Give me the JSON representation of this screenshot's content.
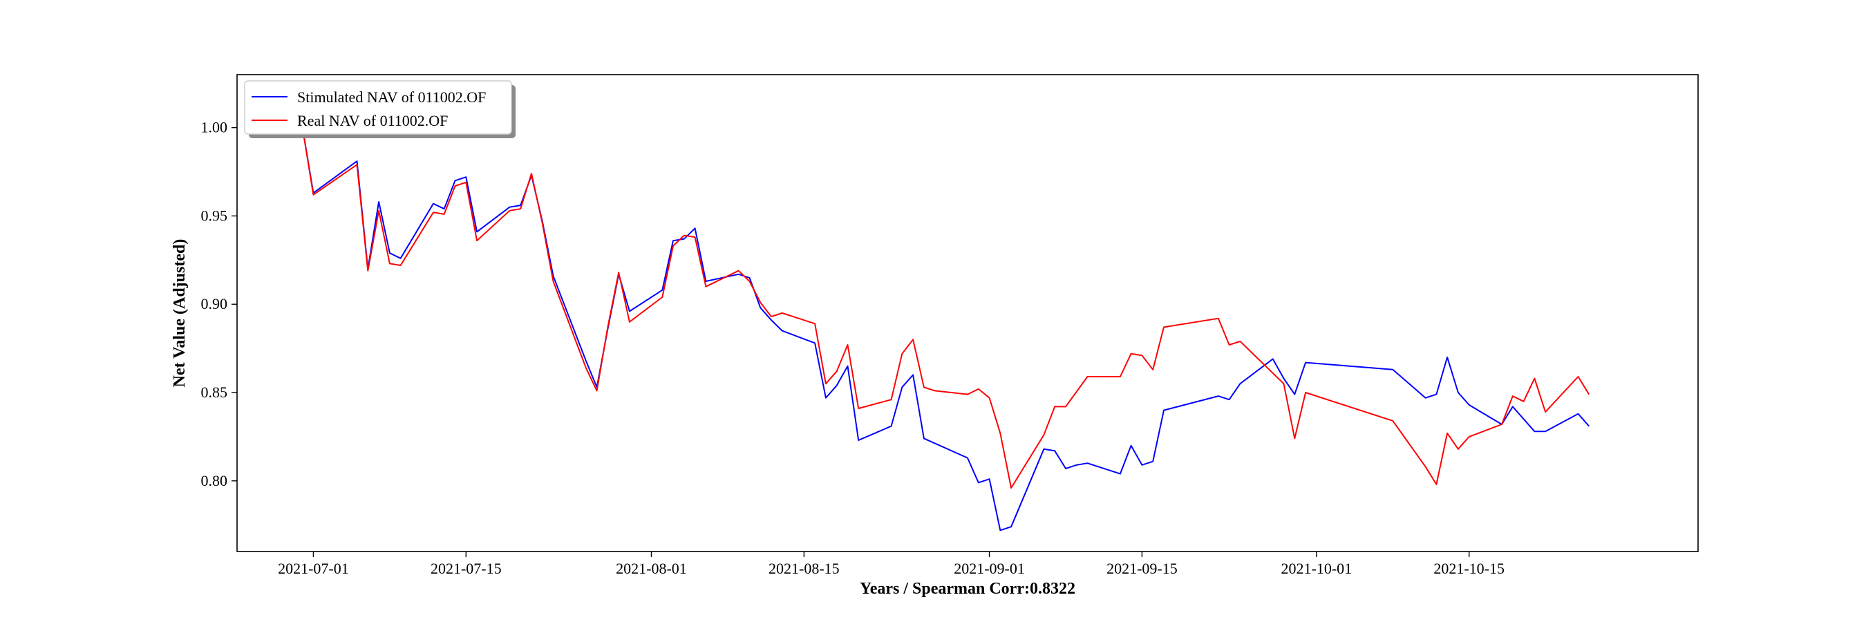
{
  "chart_data": {
    "type": "line",
    "xlabel": "Years / Spearman Corr:0.8322",
    "ylabel": "Net Value (Adjusted)",
    "x_tick_labels": [
      "2021-07-01",
      "2021-07-15",
      "2021-08-01",
      "2021-08-15",
      "2021-09-01",
      "2021-09-15",
      "2021-10-01",
      "2021-10-15"
    ],
    "y_tick_labels": [
      "0.80",
      "0.85",
      "0.90",
      "0.95",
      "1.00"
    ],
    "xlim": [
      "2021-06-24",
      "2021-11-05"
    ],
    "ylim": [
      0.76,
      1.03
    ],
    "grid": false,
    "legend_position": "top-left",
    "series": [
      {
        "name": "Stimulated NAV of 011002.OF",
        "color": "#0000ff",
        "points": [
          [
            "2021-06-30",
            1.0
          ],
          [
            "2021-07-01",
            0.963
          ],
          [
            "2021-07-05",
            0.981
          ],
          [
            "2021-07-06",
            0.92
          ],
          [
            "2021-07-07",
            0.958
          ],
          [
            "2021-07-08",
            0.929
          ],
          [
            "2021-07-09",
            0.926
          ],
          [
            "2021-07-12",
            0.957
          ],
          [
            "2021-07-13",
            0.954
          ],
          [
            "2021-07-14",
            0.97
          ],
          [
            "2021-07-15",
            0.972
          ],
          [
            "2021-07-16",
            0.941
          ],
          [
            "2021-07-19",
            0.955
          ],
          [
            "2021-07-20",
            0.956
          ],
          [
            "2021-07-21",
            0.973
          ],
          [
            "2021-07-22",
            0.947
          ],
          [
            "2021-07-23",
            0.916
          ],
          [
            "2021-07-26",
            0.868
          ],
          [
            "2021-07-27",
            0.853
          ],
          [
            "2021-07-28",
            0.886
          ],
          [
            "2021-07-29",
            0.917
          ],
          [
            "2021-07-30",
            0.896
          ],
          [
            "2021-08-02",
            0.908
          ],
          [
            "2021-08-03",
            0.936
          ],
          [
            "2021-08-04",
            0.937
          ],
          [
            "2021-08-05",
            0.943
          ],
          [
            "2021-08-06",
            0.913
          ],
          [
            "2021-08-09",
            0.917
          ],
          [
            "2021-08-10",
            0.915
          ],
          [
            "2021-08-11",
            0.898
          ],
          [
            "2021-08-12",
            0.891
          ],
          [
            "2021-08-13",
            0.885
          ],
          [
            "2021-08-16",
            0.878
          ],
          [
            "2021-08-17",
            0.847
          ],
          [
            "2021-08-18",
            0.854
          ],
          [
            "2021-08-19",
            0.865
          ],
          [
            "2021-08-20",
            0.823
          ],
          [
            "2021-08-23",
            0.831
          ],
          [
            "2021-08-24",
            0.853
          ],
          [
            "2021-08-25",
            0.86
          ],
          [
            "2021-08-26",
            0.824
          ],
          [
            "2021-08-30",
            0.813
          ],
          [
            "2021-08-31",
            0.799
          ],
          [
            "2021-09-01",
            0.801
          ],
          [
            "2021-09-02",
            0.772
          ],
          [
            "2021-09-03",
            0.774
          ],
          [
            "2021-09-06",
            0.818
          ],
          [
            "2021-09-07",
            0.817
          ],
          [
            "2021-09-08",
            0.807
          ],
          [
            "2021-09-09",
            0.809
          ],
          [
            "2021-09-10",
            0.81
          ],
          [
            "2021-09-13",
            0.804
          ],
          [
            "2021-09-14",
            0.82
          ],
          [
            "2021-09-15",
            0.809
          ],
          [
            "2021-09-16",
            0.811
          ],
          [
            "2021-09-17",
            0.84
          ],
          [
            "2021-09-22",
            0.848
          ],
          [
            "2021-09-23",
            0.846
          ],
          [
            "2021-09-24",
            0.855
          ],
          [
            "2021-09-27",
            0.869
          ],
          [
            "2021-09-28",
            0.858
          ],
          [
            "2021-09-29",
            0.849
          ],
          [
            "2021-09-30",
            0.867
          ],
          [
            "2021-10-08",
            0.863
          ],
          [
            "2021-10-11",
            0.847
          ],
          [
            "2021-10-12",
            0.849
          ],
          [
            "2021-10-13",
            0.87
          ],
          [
            "2021-10-14",
            0.85
          ],
          [
            "2021-10-15",
            0.843
          ],
          [
            "2021-10-18",
            0.832
          ],
          [
            "2021-10-19",
            0.842
          ],
          [
            "2021-10-20",
            0.835
          ],
          [
            "2021-10-21",
            0.828
          ],
          [
            "2021-10-22",
            0.828
          ],
          [
            "2021-10-25",
            0.838
          ],
          [
            "2021-10-26",
            0.831
          ]
        ]
      },
      {
        "name": "Real NAV of 011002.OF",
        "color": "#ff0000",
        "points": [
          [
            "2021-06-30",
            1.0
          ],
          [
            "2021-07-01",
            0.962
          ],
          [
            "2021-07-05",
            0.979
          ],
          [
            "2021-07-06",
            0.919
          ],
          [
            "2021-07-07",
            0.953
          ],
          [
            "2021-07-08",
            0.923
          ],
          [
            "2021-07-09",
            0.922
          ],
          [
            "2021-07-12",
            0.952
          ],
          [
            "2021-07-13",
            0.951
          ],
          [
            "2021-07-14",
            0.967
          ],
          [
            "2021-07-15",
            0.969
          ],
          [
            "2021-07-16",
            0.936
          ],
          [
            "2021-07-19",
            0.953
          ],
          [
            "2021-07-20",
            0.954
          ],
          [
            "2021-07-21",
            0.974
          ],
          [
            "2021-07-22",
            0.946
          ],
          [
            "2021-07-23",
            0.913
          ],
          [
            "2021-07-26",
            0.864
          ],
          [
            "2021-07-27",
            0.851
          ],
          [
            "2021-07-28",
            0.887
          ],
          [
            "2021-07-29",
            0.918
          ],
          [
            "2021-07-30",
            0.89
          ],
          [
            "2021-08-02",
            0.904
          ],
          [
            "2021-08-03",
            0.933
          ],
          [
            "2021-08-04",
            0.939
          ],
          [
            "2021-08-05",
            0.938
          ],
          [
            "2021-08-06",
            0.91
          ],
          [
            "2021-08-09",
            0.919
          ],
          [
            "2021-08-10",
            0.913
          ],
          [
            "2021-08-11",
            0.901
          ],
          [
            "2021-08-12",
            0.893
          ],
          [
            "2021-08-13",
            0.895
          ],
          [
            "2021-08-16",
            0.889
          ],
          [
            "2021-08-17",
            0.855
          ],
          [
            "2021-08-18",
            0.862
          ],
          [
            "2021-08-19",
            0.877
          ],
          [
            "2021-08-20",
            0.841
          ],
          [
            "2021-08-23",
            0.846
          ],
          [
            "2021-08-24",
            0.872
          ],
          [
            "2021-08-25",
            0.88
          ],
          [
            "2021-08-26",
            0.853
          ],
          [
            "2021-08-27",
            0.851
          ],
          [
            "2021-08-30",
            0.849
          ],
          [
            "2021-08-31",
            0.852
          ],
          [
            "2021-09-01",
            0.847
          ],
          [
            "2021-09-02",
            0.827
          ],
          [
            "2021-09-03",
            0.796
          ],
          [
            "2021-09-06",
            0.826
          ],
          [
            "2021-09-07",
            0.842
          ],
          [
            "2021-09-08",
            0.842
          ],
          [
            "2021-09-10",
            0.859
          ],
          [
            "2021-09-13",
            0.859
          ],
          [
            "2021-09-14",
            0.872
          ],
          [
            "2021-09-15",
            0.871
          ],
          [
            "2021-09-16",
            0.863
          ],
          [
            "2021-09-17",
            0.887
          ],
          [
            "2021-09-22",
            0.892
          ],
          [
            "2021-09-23",
            0.877
          ],
          [
            "2021-09-24",
            0.879
          ],
          [
            "2021-09-28",
            0.855
          ],
          [
            "2021-09-29",
            0.824
          ],
          [
            "2021-09-30",
            0.85
          ],
          [
            "2021-10-08",
            0.834
          ],
          [
            "2021-10-11",
            0.808
          ],
          [
            "2021-10-12",
            0.798
          ],
          [
            "2021-10-13",
            0.827
          ],
          [
            "2021-10-14",
            0.818
          ],
          [
            "2021-10-15",
            0.825
          ],
          [
            "2021-10-18",
            0.832
          ],
          [
            "2021-10-19",
            0.848
          ],
          [
            "2021-10-20",
            0.845
          ],
          [
            "2021-10-21",
            0.858
          ],
          [
            "2021-10-22",
            0.839
          ],
          [
            "2021-10-25",
            0.859
          ],
          [
            "2021-10-26",
            0.849
          ]
        ]
      }
    ]
  }
}
